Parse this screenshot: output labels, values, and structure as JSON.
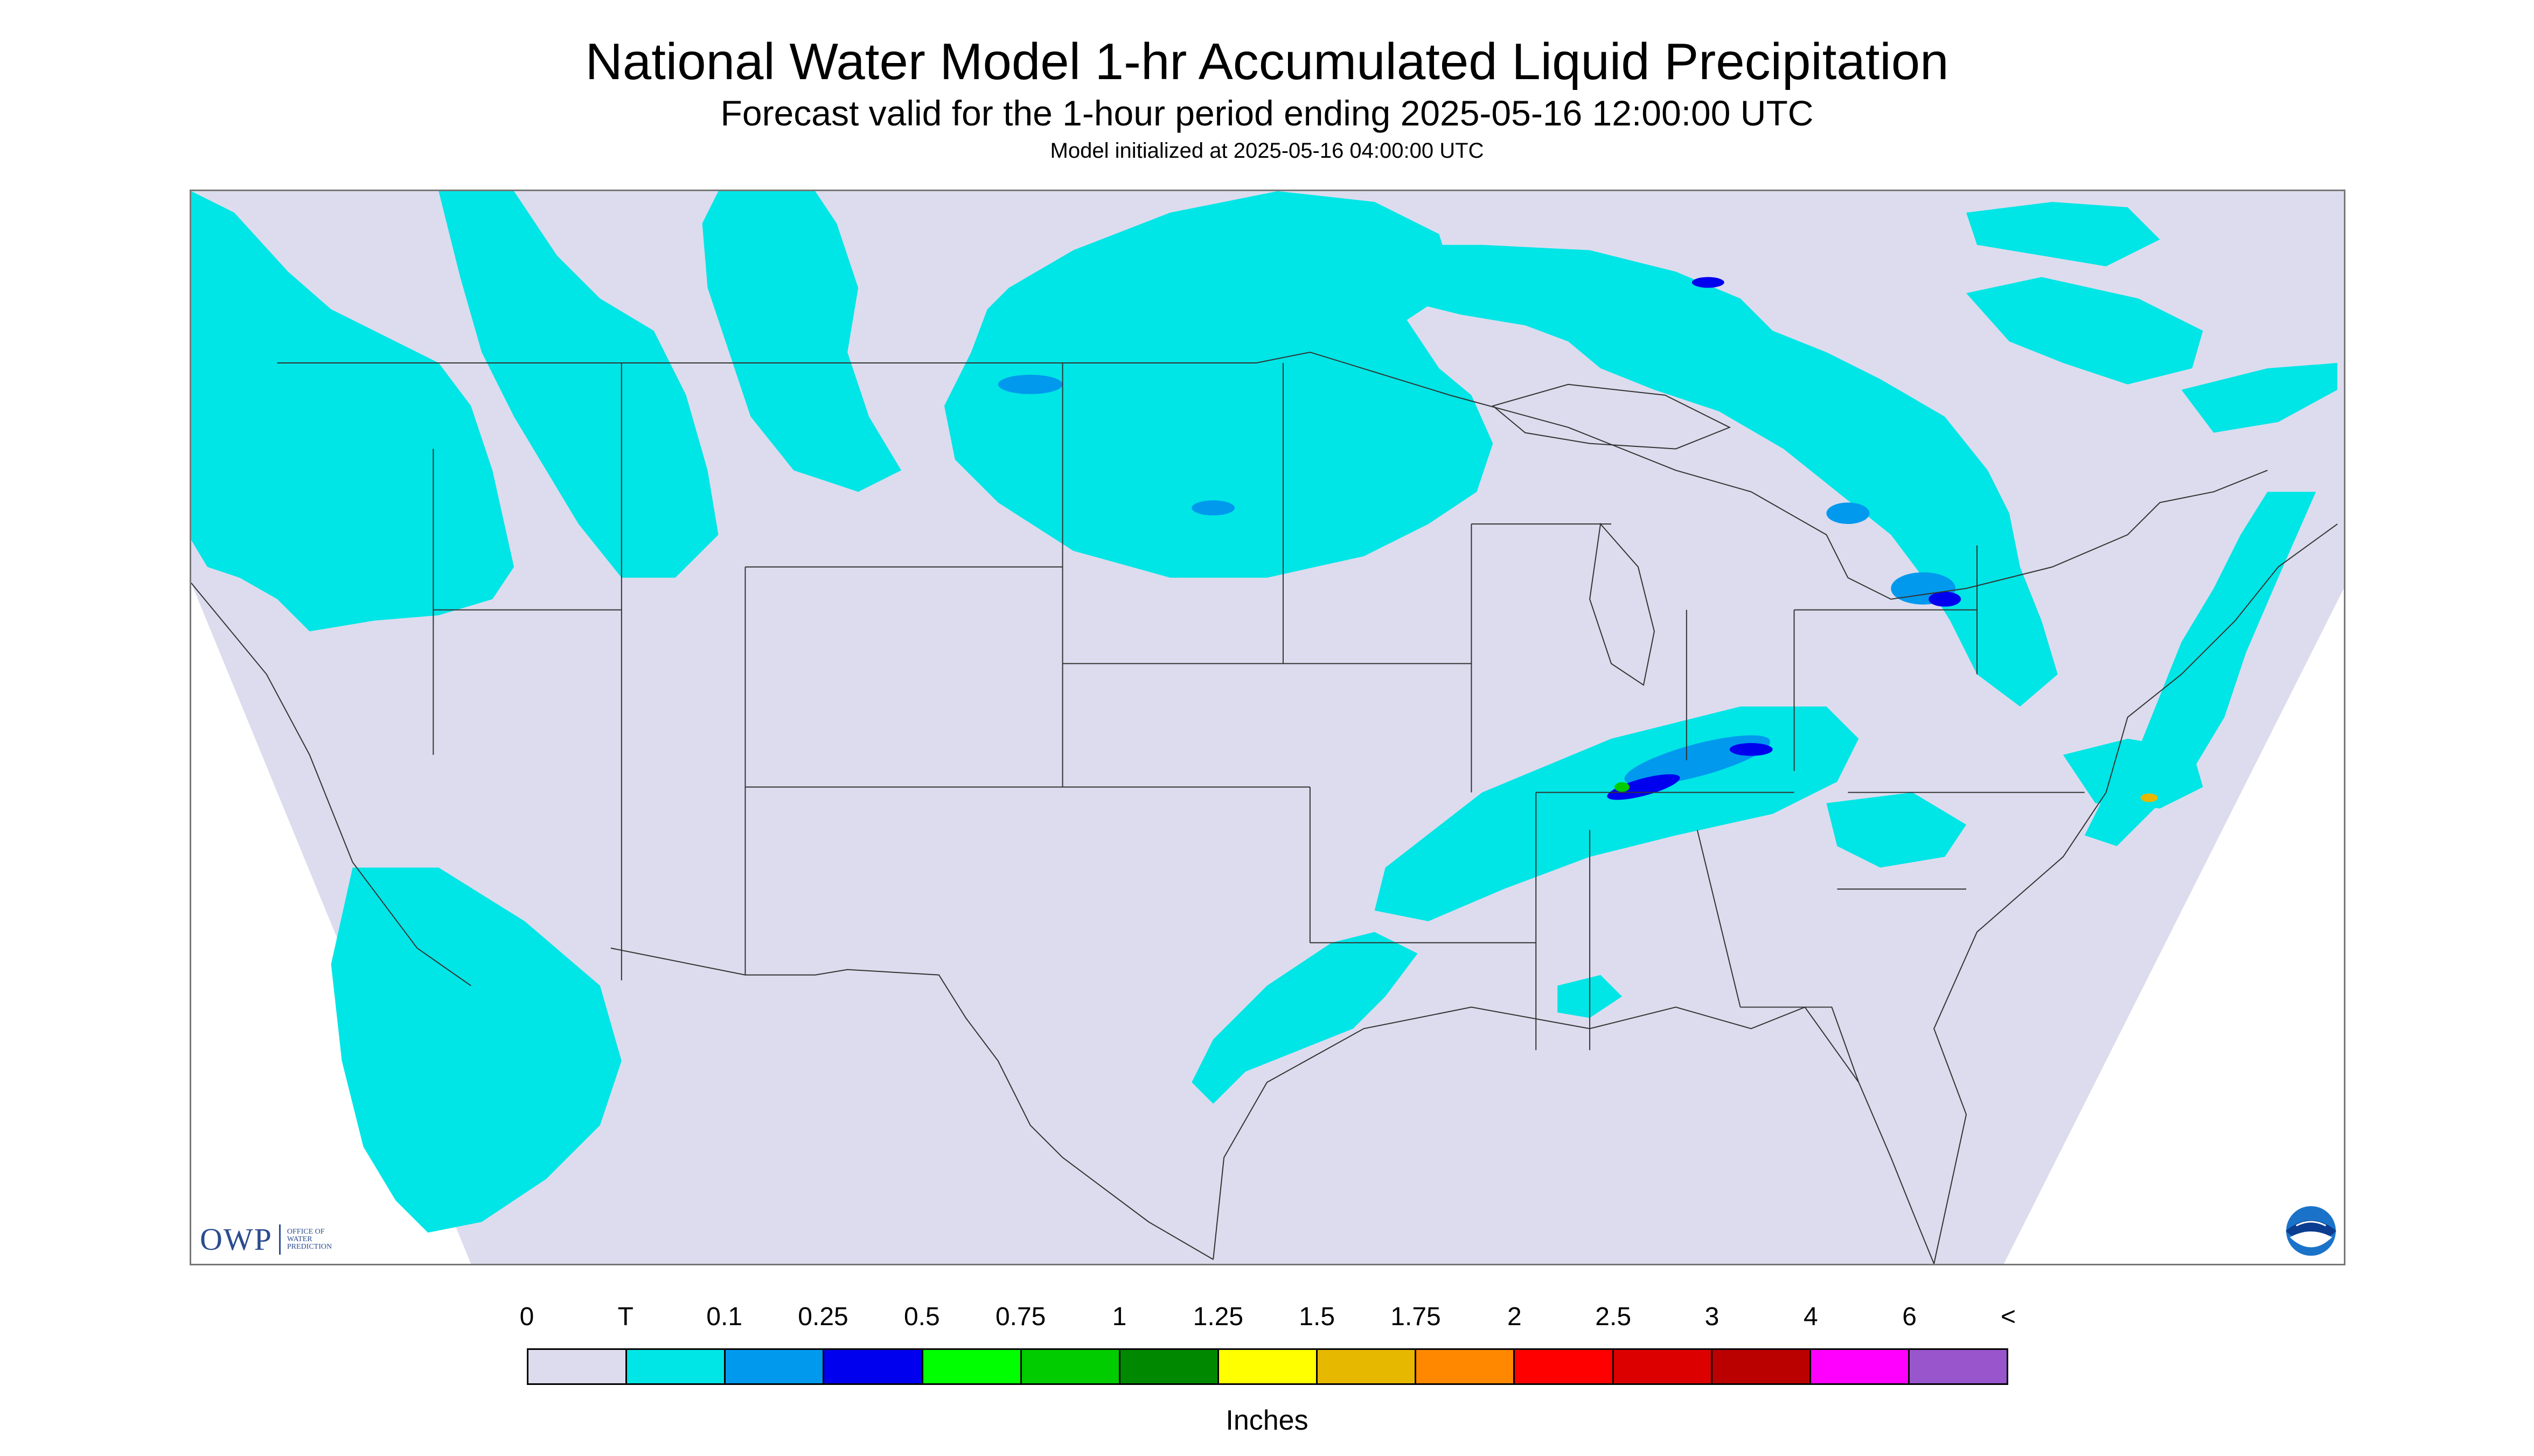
{
  "header": {
    "title": "National Water Model 1-hr Accumulated Liquid Precipitation",
    "subtitle": "Forecast valid for the 1-hour period ending 2025-05-16 12:00:00 UTC",
    "init": "Model initialized at 2025-05-16 04:00:00 UTC"
  },
  "map": {
    "region": "Contiguous United States",
    "land_color": "#dcdcee",
    "border_color": "#333333"
  },
  "logos": {
    "owp": "OWP",
    "owp_sub": [
      "OFFICE OF",
      "WATER",
      "PREDICTION"
    ],
    "noaa": "NOAA"
  },
  "legend": {
    "ticks": [
      "0",
      "T",
      "0.1",
      "0.25",
      "0.5",
      "0.75",
      "1",
      "1.25",
      "1.5",
      "1.75",
      "2",
      "2.5",
      "3",
      "4",
      "6",
      "<"
    ],
    "colors": [
      "#dcdcee",
      "#00e5e5",
      "#0099ee",
      "#0000ee",
      "#00ff00",
      "#00cc00",
      "#008800",
      "#ffff00",
      "#e6b800",
      "#ff8800",
      "#ff0000",
      "#dd0000",
      "#bb0000",
      "#ff00ff",
      "#9955cc"
    ],
    "units": "Inches"
  }
}
